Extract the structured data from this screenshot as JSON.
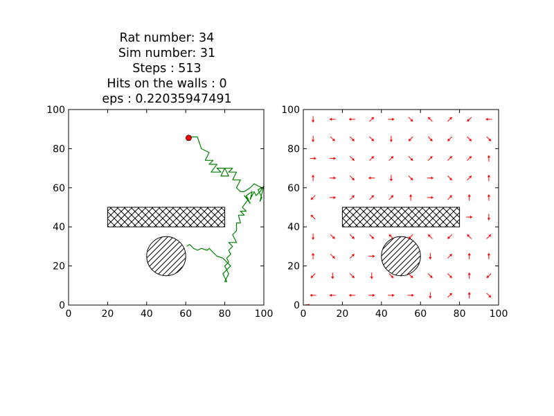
{
  "figure": {
    "title_lines": [
      "Rat number: 34",
      "Sim number: 31",
      "Steps : 513",
      "Hits on the walls : 0",
      "eps : 0.22035947491"
    ]
  },
  "colors": {
    "trajectory": "#008000",
    "rat": "#ff0000",
    "arrows": "#ff0000",
    "axes": "#000000"
  },
  "chart_data": [
    {
      "type": "line",
      "xlim": [
        0,
        100
      ],
      "ylim": [
        0,
        100
      ],
      "x_ticks": [
        "0",
        "20",
        "40",
        "60",
        "80",
        "100"
      ],
      "y_ticks": [
        "0",
        "20",
        "40",
        "60",
        "80",
        "100"
      ],
      "grid": false,
      "obstacles": [
        {
          "shape": "rectangle",
          "x": [
            20,
            80
          ],
          "y": [
            40,
            50
          ],
          "hatch": "cross"
        },
        {
          "shape": "circle",
          "center": [
            50,
            25
          ],
          "radius": 10,
          "hatch": "diagonal"
        }
      ],
      "rat_position": [
        61.5,
        85.5
      ],
      "trajectory": {
        "x": [
          60.5,
          66,
          68,
          72,
          70,
          74,
          72,
          76,
          73,
          78,
          76,
          80,
          78,
          82,
          80,
          84,
          82,
          86,
          84,
          88,
          86,
          88,
          90,
          93,
          95,
          97,
          99,
          97,
          99,
          98,
          100,
          98,
          96,
          95,
          93,
          94,
          91,
          93,
          90,
          92,
          89,
          91,
          88,
          90,
          87,
          88,
          86,
          86,
          84,
          85,
          86,
          82,
          84,
          82,
          83,
          81,
          82,
          80,
          81,
          79,
          80,
          81,
          80,
          82,
          81,
          83,
          81,
          79,
          76,
          74,
          72,
          71,
          68,
          66,
          64,
          62,
          60.5
        ],
        "y": [
          86,
          86,
          80,
          78,
          74,
          74,
          72,
          72,
          68,
          68,
          70,
          70,
          66,
          66,
          70,
          70,
          68,
          68,
          64,
          64,
          60,
          58,
          58,
          60,
          62,
          61,
          60,
          59,
          55,
          53,
          61,
          58,
          56,
          58,
          54,
          58,
          56,
          52,
          56,
          54,
          50,
          48,
          48,
          46,
          46,
          42,
          42,
          38,
          36,
          34,
          32,
          32,
          30,
          28,
          26,
          24,
          22,
          20,
          18,
          16,
          14,
          12,
          12,
          16,
          18,
          20,
          22,
          24,
          25,
          27,
          29,
          28,
          29,
          28,
          29,
          31,
          30
        ]
      }
    },
    {
      "type": "quiver",
      "xlim": [
        0,
        100
      ],
      "ylim": [
        0,
        100
      ],
      "x_ticks": [
        "0",
        "20",
        "40",
        "60",
        "80",
        "100"
      ],
      "y_ticks": [
        "0",
        "20",
        "40",
        "60",
        "80",
        "100"
      ],
      "grid": false,
      "obstacles": [
        {
          "shape": "rectangle",
          "x": [
            20,
            80
          ],
          "y": [
            40,
            50
          ],
          "hatch": "cross"
        },
        {
          "shape": "circle",
          "center": [
            50,
            25
          ],
          "radius": 10,
          "hatch": "diagonal"
        }
      ],
      "grid_x": [
        5,
        15,
        25,
        35,
        45,
        55,
        65,
        75,
        85,
        95
      ],
      "grid_y": [
        95,
        85,
        75,
        65,
        55,
        45,
        35,
        25,
        15,
        5
      ],
      "directions": [
        [
          "S",
          "W",
          "W",
          "NE",
          "E",
          "SE",
          "NW",
          "NE",
          "SW",
          "W"
        ],
        [
          "S",
          "SE",
          "SE",
          "SE",
          "S",
          "SW",
          "SE",
          "SW",
          "SE",
          "SE"
        ],
        [
          "E",
          "E",
          "SE",
          "NE",
          "NE",
          "SE",
          "NE",
          "NE",
          "NE",
          "N"
        ],
        [
          "N",
          "E",
          "SE",
          "W",
          "S",
          "SE",
          "E",
          "SE",
          "NE",
          "N"
        ],
        [
          "SW",
          "E",
          "NE",
          "NE",
          "NE",
          "N",
          "E",
          "NE",
          "N",
          "N"
        ],
        [
          "NW",
          "",
          "",
          "",
          "",
          "",
          "",
          "",
          "E",
          "S"
        ],
        [
          "S",
          "SE",
          "SE",
          "SE",
          "NW",
          "SW",
          "NW",
          "SW",
          "NW",
          "NE"
        ],
        [
          "N",
          "SE",
          "NE",
          "E",
          "",
          "",
          "S",
          "NE",
          "N",
          "N"
        ],
        [
          "SW",
          "S",
          "SE",
          "S",
          "SE",
          "SE",
          "SE",
          "SE",
          "N",
          "SW"
        ],
        [
          "W",
          "W",
          "W",
          "E",
          "E",
          "E",
          "S",
          "NE",
          "N",
          "SE"
        ]
      ]
    }
  ]
}
